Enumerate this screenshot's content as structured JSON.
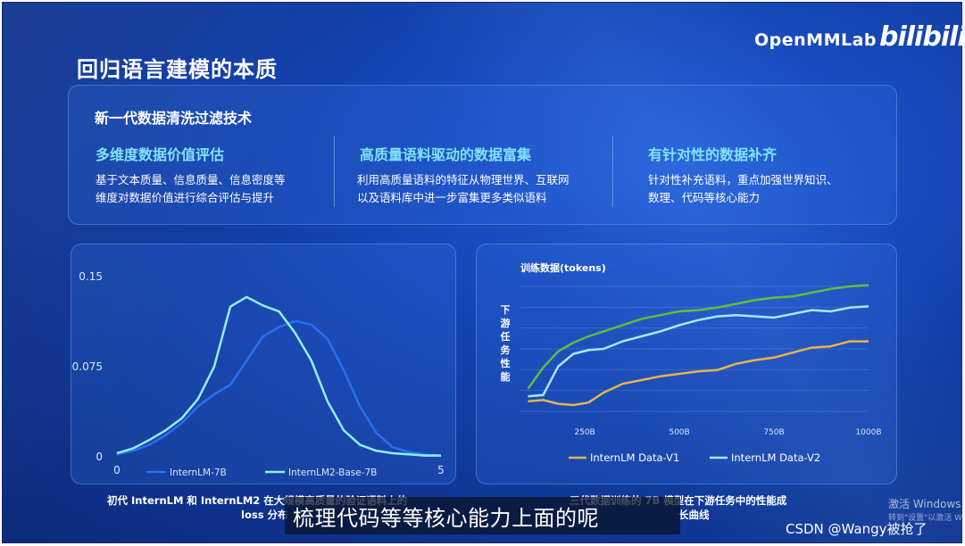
{
  "brand": {
    "name": "OpenMMLab",
    "logo_text": "bilibili"
  },
  "slide": {
    "title": "回归语言建模的本质",
    "section_title": "新一代数据清洗过滤技术",
    "columns": [
      {
        "heading": "多维度数据价值评估",
        "lines": [
          "基于文本质量、信息质量、信息密度等",
          "维度对数据价值进行综合评估与提升"
        ]
      },
      {
        "heading": "高质量语料驱动的数据富集",
        "lines": [
          "利用高质量语料的特征从物理世界、互联网",
          "以及语料库中进一步富集更多类似语料"
        ]
      },
      {
        "heading": "有针对性的数据补齐",
        "lines": [
          "针对性补充语料，重点加强世界知识、",
          "数理、代码等核心能力"
        ]
      }
    ],
    "captions": {
      "left_line1": "初代 InternLM 和 InternLM2 在大规模高质量的验证语料上的",
      "left_line2": "loss 分布",
      "right_line1": "三代数据训练的 7B 模型在下游任务中的性能成",
      "right_line2": "长曲线"
    }
  },
  "overlay": {
    "subtitle": "梳理代码等等核心能力上面的呢",
    "windows_line1": "激活 Windows",
    "windows_line2": "转到\"设置\"以激活 W",
    "watermark": "CSDN @Wangy被抢了"
  },
  "colors": {
    "bg": "#123fa8",
    "accent_text": "#7fe3ff",
    "internlm": "#2a6ff0",
    "internlm2": "#8ff0ff",
    "data_v1": "#e8b44a",
    "data_v2": "#a8e8ff",
    "data_v3": "#5fbf3a"
  },
  "chart_data": [
    {
      "type": "line",
      "title": "",
      "xlabel": "",
      "ylabel": "",
      "xlim": [
        0,
        5
      ],
      "ylim": [
        0,
        0.15
      ],
      "x_ticks": [
        "0",
        "5"
      ],
      "y_ticks": [
        "0",
        "0.075",
        "0.15"
      ],
      "grid": false,
      "legend": "bottom",
      "series": [
        {
          "name": "InternLM-7B",
          "color": "#2a6ff0",
          "x": [
            0,
            0.25,
            0.5,
            0.75,
            1.0,
            1.25,
            1.5,
            1.75,
            2.0,
            2.25,
            2.5,
            2.75,
            3.0,
            3.25,
            3.5,
            3.75,
            4.0,
            4.25,
            4.5,
            4.75,
            5.0
          ],
          "y": [
            0.002,
            0.005,
            0.01,
            0.018,
            0.028,
            0.042,
            0.052,
            0.06,
            0.08,
            0.1,
            0.108,
            0.113,
            0.11,
            0.098,
            0.072,
            0.042,
            0.02,
            0.008,
            0.004,
            0.002,
            0.001
          ]
        },
        {
          "name": "InternLM2-Base-7B",
          "color": "#8ff0ff",
          "x": [
            0,
            0.25,
            0.5,
            0.75,
            1.0,
            1.25,
            1.5,
            1.75,
            2.0,
            2.25,
            2.5,
            2.75,
            3.0,
            3.25,
            3.5,
            3.75,
            4.0,
            4.25,
            4.5,
            4.75,
            5.0
          ],
          "y": [
            0.003,
            0.007,
            0.014,
            0.022,
            0.032,
            0.048,
            0.075,
            0.125,
            0.133,
            0.126,
            0.121,
            0.103,
            0.08,
            0.046,
            0.022,
            0.01,
            0.005,
            0.003,
            0.002,
            0.001,
            0.001
          ]
        }
      ]
    },
    {
      "type": "line",
      "title": "训练数据(tokens)",
      "xlabel": "",
      "ylabel": "下游任务性能",
      "xlim": [
        100,
        1000
      ],
      "ylim": [
        0,
        100
      ],
      "x_ticks": [
        "250B",
        "500B",
        "750B",
        "1000B"
      ],
      "grid": true,
      "legend": "bottom",
      "series": [
        {
          "name": "InternLM Data-V1",
          "color": "#e8b44a",
          "x": [
            100,
            140,
            180,
            220,
            260,
            300,
            350,
            400,
            450,
            500,
            550,
            600,
            650,
            700,
            750,
            800,
            850,
            900,
            950,
            1000
          ],
          "y": [
            8,
            9,
            6,
            5,
            7,
            15,
            22,
            25,
            28,
            30,
            32,
            33,
            38,
            41,
            43,
            47,
            51,
            52,
            56,
            56
          ]
        },
        {
          "name": "InternLM Data-V2",
          "color": "#a8e8ff",
          "x": [
            100,
            140,
            180,
            220,
            260,
            300,
            350,
            400,
            450,
            500,
            550,
            600,
            650,
            700,
            750,
            800,
            850,
            900,
            950,
            1000
          ],
          "y": [
            12,
            13,
            36,
            46,
            49,
            50,
            56,
            60,
            64,
            69,
            73,
            76,
            77,
            76,
            75,
            78,
            81,
            80,
            83,
            84
          ]
        },
        {
          "name": "",
          "color": "#5fbf3a",
          "x": [
            100,
            140,
            180,
            220,
            260,
            300,
            350,
            400,
            450,
            500,
            550,
            600,
            650,
            700,
            750,
            800,
            850,
            900,
            950,
            1000
          ],
          "y": [
            18,
            35,
            48,
            55,
            60,
            64,
            69,
            74,
            77,
            80,
            81,
            83,
            86,
            89,
            91,
            92,
            95,
            98,
            100,
            101
          ]
        }
      ]
    }
  ]
}
